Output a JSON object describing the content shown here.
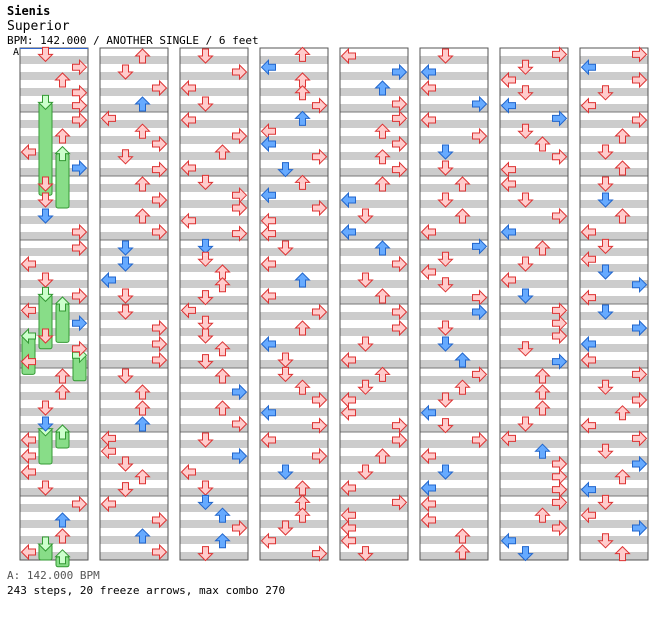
{
  "song": {
    "artist": "Sienis",
    "title": "Superior",
    "info_line": "BPM: 142.000 / ANOTHER SINGLE / 6 feet"
  },
  "marker_label": "A",
  "footer": {
    "bpm_line": "A: 142.000 BPM",
    "stats_line": "243 steps, 20 freeze arrows, max combo 270"
  },
  "chart_data": {
    "type": "step-chart",
    "lanes": [
      "left",
      "down",
      "up",
      "right"
    ],
    "columns": 8,
    "measures_per_column": 8,
    "colors": {
      "quarter": "#ff6666",
      "eighth": "#4499ff",
      "freeze": "#88dd88",
      "stripe": "#cccccc"
    },
    "notes": [
      [
        [
          [
            2,
            3,
            0.17,
            "e"
          ],
          [
            3,
            3,
            0.5,
            "e"
          ],
          [
            2,
            3,
            0.83,
            "e"
          ]
        ],
        [
          [
            1,
            3,
            0.17,
            "e"
          ],
          [
            1,
            3,
            0.5,
            "e"
          ],
          [
            2,
            3,
            0.83,
            "e"
          ]
        ],
        [
          [
            1,
            0,
            0.17,
            "q"
          ],
          [
            0,
            0,
            0.5,
            "q"
          ],
          [
            0,
            0,
            0.83,
            "e"
          ]
        ],
        [
          [
            2,
            0,
            0.17,
            "q"
          ],
          [
            3,
            0,
            0.5,
            "q"
          ],
          [
            2,
            0,
            0.83,
            "e"
          ]
        ]
      ],
      [
        [
          [
            1,
            1,
            0.25,
            "e"
          ],
          [
            3,
            3,
            0.25,
            "q"
          ],
          [
            3,
            3,
            0.5,
            "q"
          ],
          [
            3,
            3,
            0.75,
            "q"
          ]
        ],
        [
          [
            0,
            1,
            0.6,
            "e"
          ],
          [
            0,
            1,
            0.8,
            "e"
          ],
          [
            3,
            3,
            0.9,
            "q"
          ]
        ],
        [
          [
            0,
            0,
            0.1,
            "q"
          ],
          [
            0,
            0,
            0.4,
            "q"
          ],
          [
            2,
            2,
            0.45,
            "e"
          ],
          [
            0,
            0,
            0.6,
            "q"
          ]
        ],
        [
          [
            3,
            3,
            0.9,
            "q"
          ],
          [
            0,
            0,
            0.95,
            "q"
          ]
        ],
        [
          [
            0,
            1,
            0.3,
            "e"
          ],
          [
            3,
            3,
            0.1,
            "q"
          ]
        ],
        [
          [
            3,
            3,
            0.2,
            "q"
          ],
          [
            3,
            3,
            0.6,
            "q"
          ],
          [
            3,
            1,
            0.7,
            "e"
          ],
          [
            3,
            1,
            0.9,
            "e"
          ]
        ],
        [
          [
            3,
            3,
            0.2,
            "q"
          ],
          [
            3,
            3,
            0.5,
            "q"
          ],
          [
            2,
            1,
            0.75,
            "e"
          ],
          [
            3,
            3,
            0.7,
            "q"
          ]
        ],
        [
          [
            0,
            1,
            0.5,
            "e"
          ],
          [
            0,
            0,
            0.85,
            "q"
          ]
        ]
      ]
    ],
    "freezes": [
      [
        1,
        0.85,
        1,
        2.3
      ],
      [
        2,
        1.65,
        2,
        2.5
      ],
      [
        1,
        3.85,
        1,
        4.7
      ],
      [
        2,
        4.0,
        2,
        4.6
      ],
      [
        0,
        4.5,
        0,
        5.1
      ],
      [
        3,
        4.8,
        3,
        5.2
      ],
      [
        1,
        5.95,
        1,
        6.5
      ],
      [
        2,
        6.0,
        2,
        6.25
      ],
      [
        1,
        7.75,
        1,
        8.4
      ],
      [
        2,
        7.95,
        2,
        8.6
      ]
    ]
  }
}
